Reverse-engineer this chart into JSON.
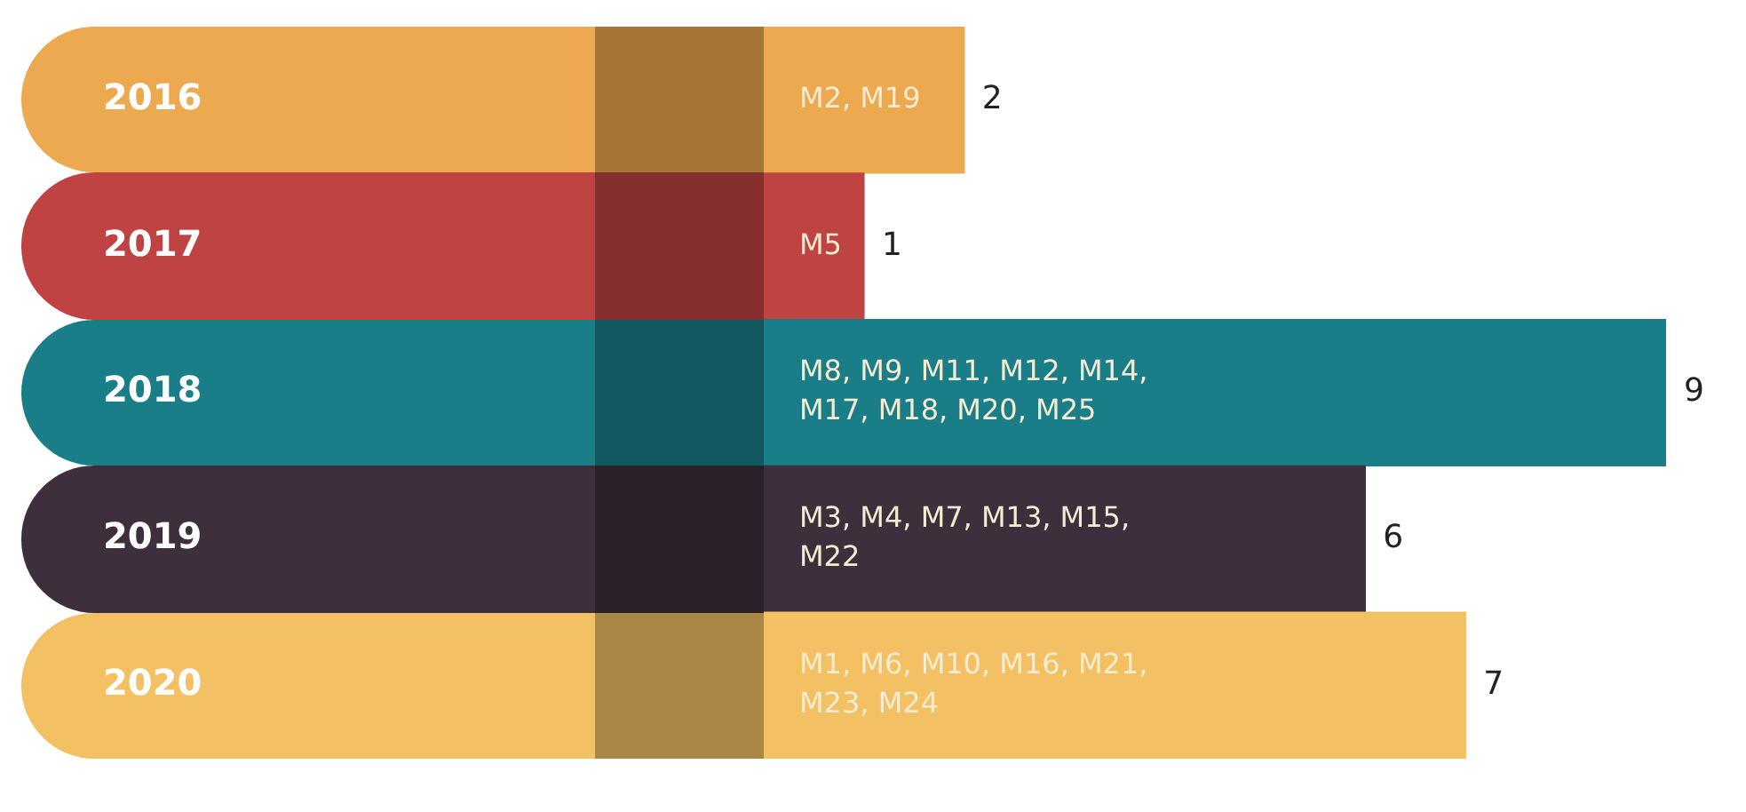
{
  "chart_data": {
    "type": "bar",
    "orientation": "horizontal",
    "categories": [
      "2016",
      "2017",
      "2018",
      "2019",
      "2020"
    ],
    "values": [
      2,
      1,
      9,
      6,
      7
    ],
    "colors": [
      "#eda94f",
      "#be4342",
      "#1a7e89",
      "#3e2f3d",
      "#f3c163"
    ],
    "data_labels": true,
    "legend": false,
    "annotations": [
      "M2, M19",
      "M5",
      "M8, M9, M11, M12, M14, M17, M18, M20, M25",
      "M3, M4, M7, M13, M15, M22",
      "M1, M6, M10, M16, M21, M23, M24"
    ]
  }
}
